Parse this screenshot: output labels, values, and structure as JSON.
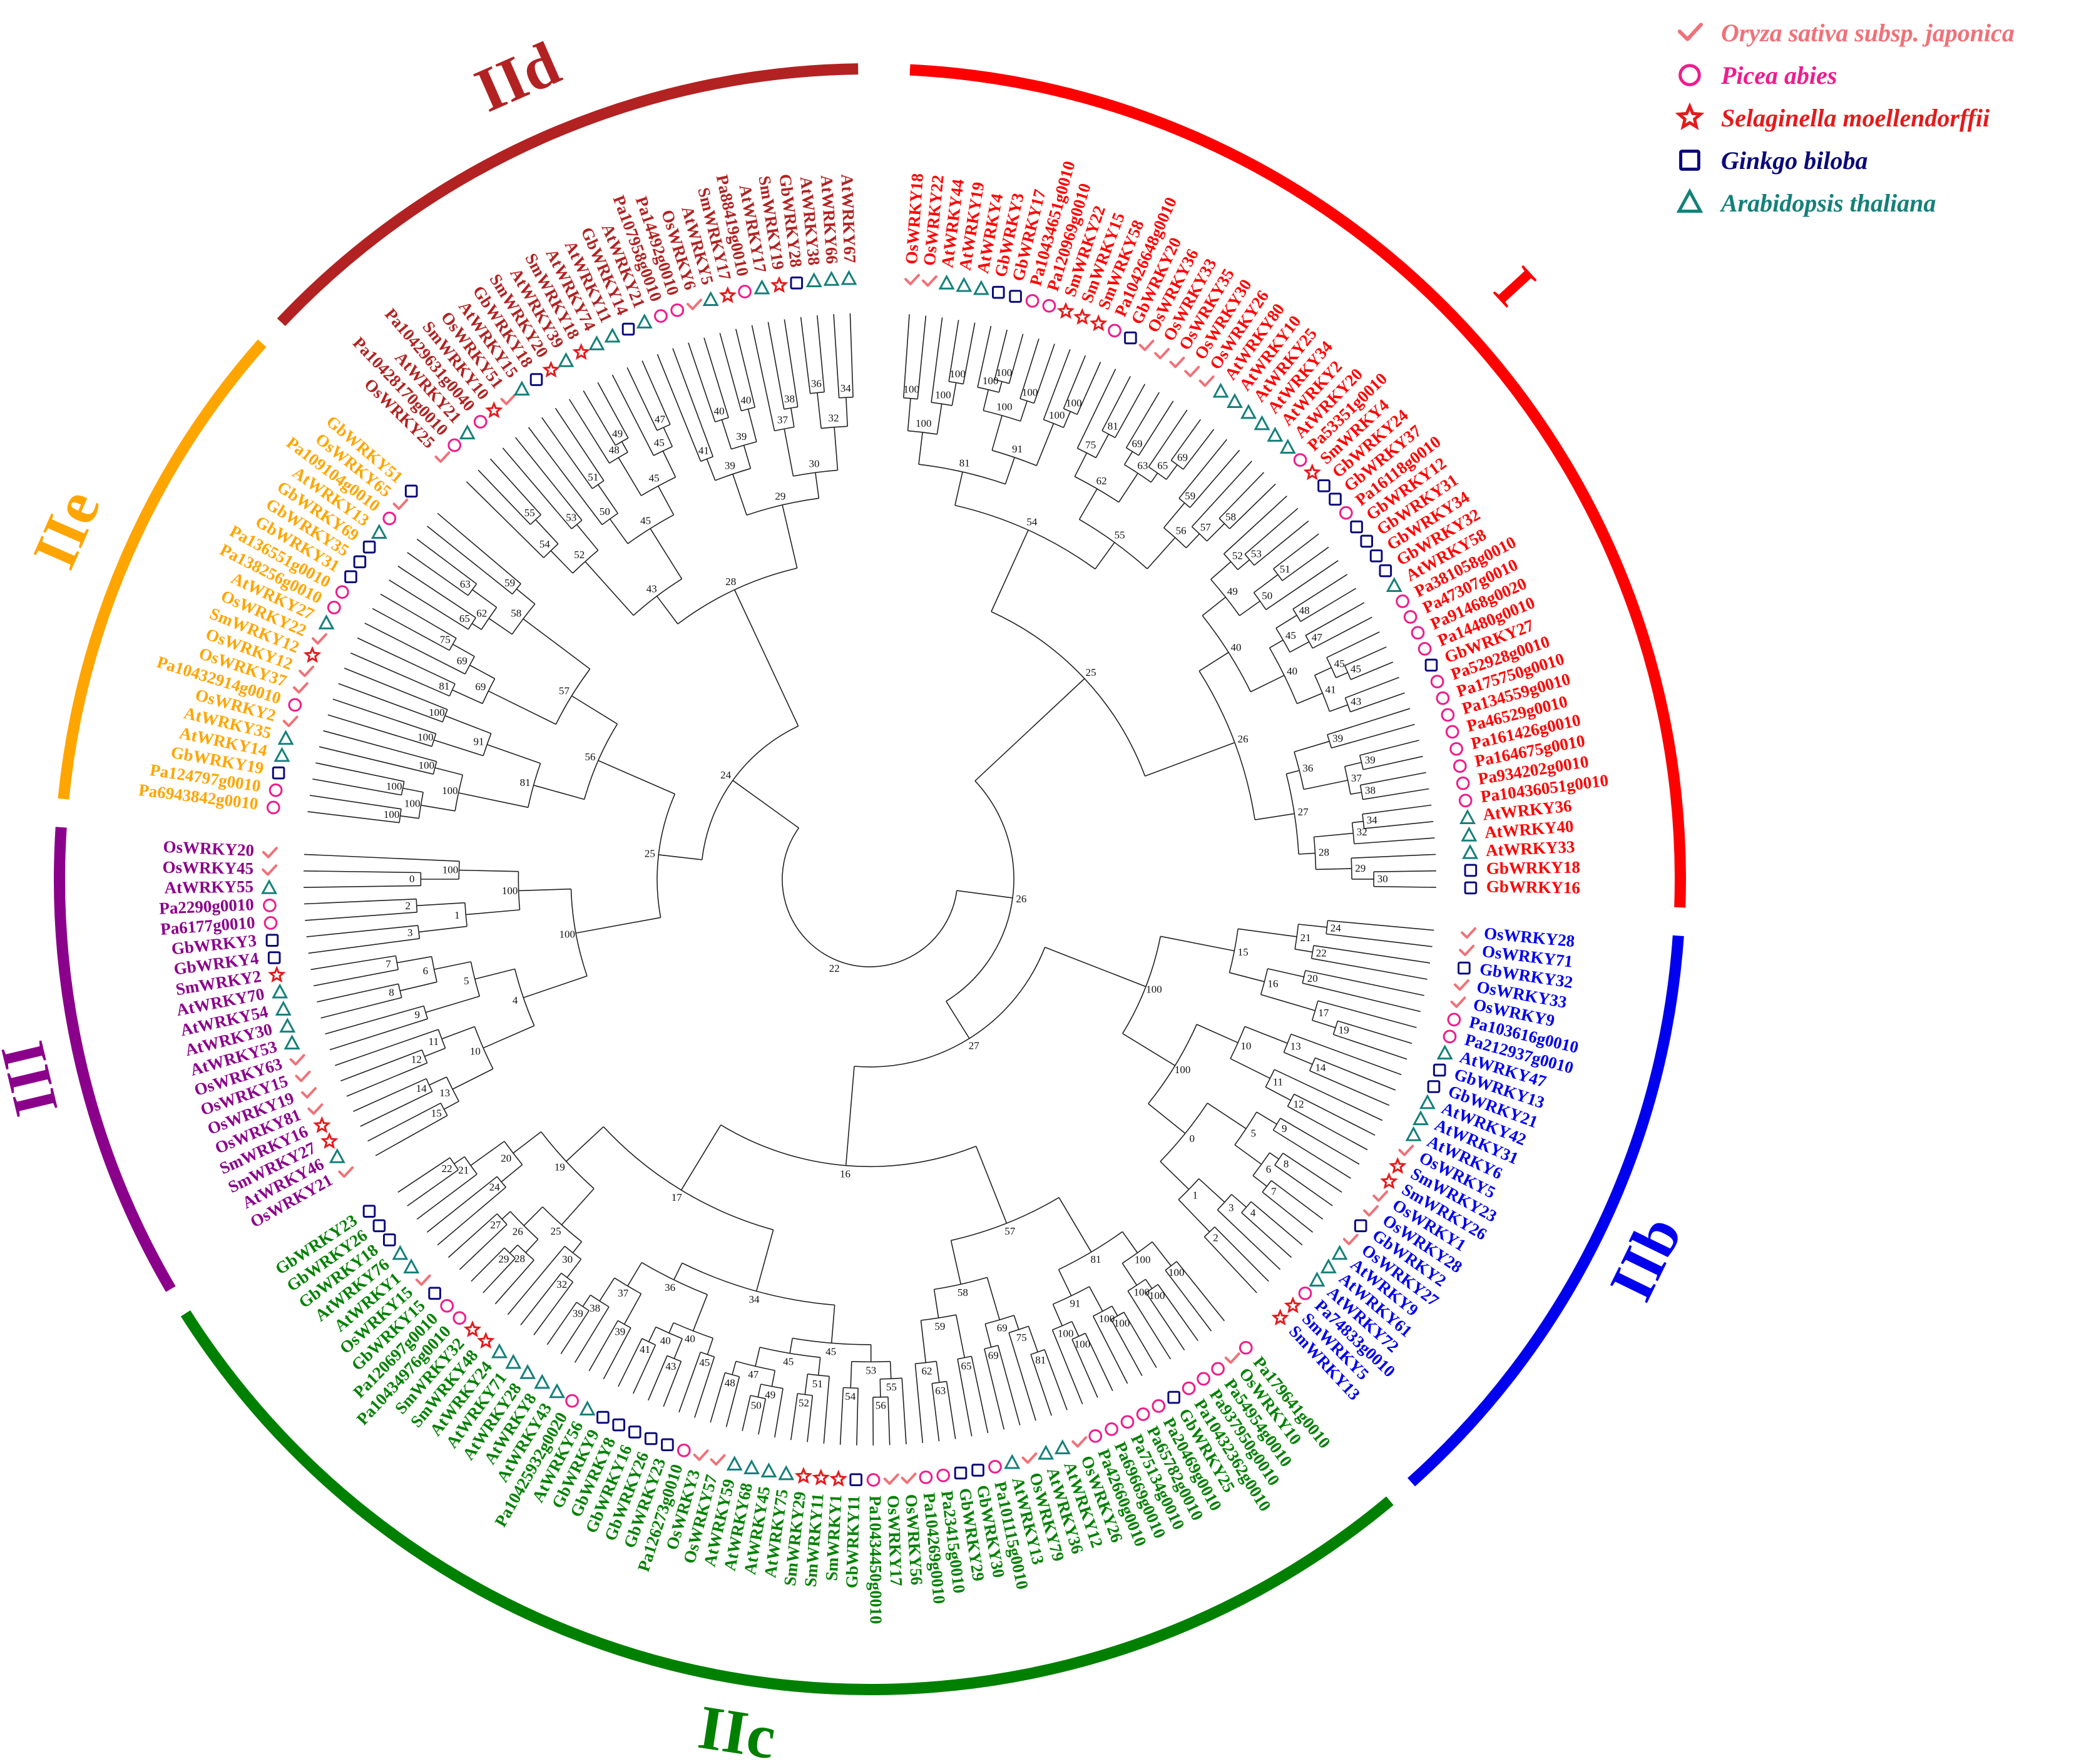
{
  "legend": [
    {
      "species": "Oryza sativa subsp. japonica",
      "prefix": "Os",
      "marker": "check",
      "color": "#f07178"
    },
    {
      "species": "Picea abies",
      "prefix": "Pa",
      "marker": "circle",
      "color": "#ee1c8c"
    },
    {
      "species": "Selaginella moellendorffii",
      "prefix": "Sm",
      "marker": "star",
      "color": "#e41a1c"
    },
    {
      "species": "Ginkgo biloba",
      "prefix": "Gb",
      "marker": "square",
      "color": "#0a0a7a"
    },
    {
      "species": "Arabidopsis thaliana",
      "prefix": "At",
      "marker": "triangle",
      "color": "#15807a"
    }
  ],
  "groups": [
    {
      "name": "I",
      "color": "#ff0000",
      "leaves": [
        "OsWRKY18",
        "OsWRKY22",
        "AtWRKY44",
        "AtWRKY19",
        "AtWRKY4",
        "GbWRKY3",
        "GbWRKY17",
        "Pa10434651g0010",
        "Pa120969g0010",
        "SmWRKY22",
        "SmWRKY15",
        "SmWRKY58",
        "Pa10426648g0010",
        "GbWRKY20",
        "OsWRKY36",
        "OsWRKY33",
        "OsWRKY35",
        "OsWRKY30",
        "OsWRKY26",
        "AtWRKY80",
        "AtWRKY10",
        "AtWRKY25",
        "AtWRKY34",
        "AtWRKY2",
        "AtWRKY20",
        "Pa53351g0010",
        "SmWRKY4",
        "GbWRKY24",
        "GbWRKY37",
        "Pa16118g0010",
        "GbWRKY12",
        "GbWRKY31",
        "GbWRKY34",
        "GbWRKY32",
        "AtWRKY58",
        "Pa381058g0010",
        "Pa47307g0010",
        "Pa91468g0020",
        "Pa14480g0010",
        "GbWRKY27",
        "Pa52928g0010",
        "Pa175750g0010",
        "Pa134559g0010",
        "Pa46529g0010",
        "Pa161426g0010",
        "Pa164675g0010",
        "Pa934202g0010",
        "Pa10436051g0010",
        "AtWRKY36",
        "AtWRKY40",
        "AtWRKY33",
        "GbWRKY18",
        "GbWRKY16"
      ]
    },
    {
      "name": "IIb",
      "color": "#0000ee",
      "leaves": [
        "OsWRKY28",
        "OsWRKY71",
        "GbWRKY32",
        "OsWRKY33",
        "OsWRKY9",
        "Pa103616g0010",
        "Pa212937g0010",
        "AtWRKY47",
        "GbWRKY13",
        "GbWRKY21",
        "AtWRKY42",
        "AtWRKY31",
        "AtWRKY6",
        "OsWRKY5",
        "SmWRKY23",
        "SmWRKY26",
        "OsWRKY1",
        "OsWRKY28",
        "GbWRKY2",
        "OsWRKY27",
        "AtWRKY9",
        "AtWRKY61",
        "AtWRKY72",
        "Pa74833g0010",
        "SmWRKY5",
        "SmWRKY13"
      ]
    },
    {
      "name": "IIc",
      "color": "#008000",
      "leaves": [
        "Pa179641g0010",
        "OsWRKY10",
        "Pa54954g0010",
        "Pa937950g0010",
        "Pa10432362g0010",
        "GbWRKY25",
        "Pa20469g0010",
        "Pa65782g0010",
        "Pa75134g0010",
        "Pa69669g0010",
        "Pa42660g0010",
        "OsWRKY26",
        "AtWRKY12",
        "AtWRKY36",
        "OsWRKY79",
        "AtWRKY13",
        "Pa101115g0010",
        "GbWRKY30",
        "GbWRKY29",
        "Pa23415g0010",
        "Pa104269g0010",
        "OsWRKY56",
        "OsWRKY17",
        "Pa10434450g0010",
        "GbWRKY11",
        "SmWRKY1",
        "SmWRKY11",
        "SmWRKY29",
        "AtWRKY75",
        "AtWRKY45",
        "AtWRKY68",
        "AtWRKY59",
        "OsWRKY57",
        "OsWRKY3",
        "Pa126273g0010",
        "GbWRKY23",
        "GbWRKY26",
        "GbWRKY16",
        "GbWRKY8",
        "GbWRKY9",
        "AtWRKY56",
        "Pa10425932g0020",
        "AtWRKY43",
        "AtWRKY8",
        "AtWRKY28",
        "AtWRKY71",
        "AtWRKY24",
        "SmWRKY48",
        "SmWRKY32",
        "Pa10434976g0010",
        "Pa120697g0010",
        "GbWRKY15",
        "OsWRKY15",
        "AtWRKY1",
        "AtWRKY76",
        "GbWRKY18",
        "GbWRKY26",
        "GbWRKY23"
      ]
    },
    {
      "name": "III",
      "color": "#8b008b",
      "leaves": [
        "OsWRKY21",
        "AtWRKY46",
        "SmWRKY27",
        "SmWRKY16",
        "OsWRKY81",
        "OsWRKY19",
        "OsWRKY15",
        "OsWRKY63",
        "AtWRKY53",
        "AtWRKY30",
        "AtWRKY54",
        "AtWRKY70",
        "SmWRKY2",
        "GbWRKY4",
        "GbWRKY3",
        "Pa6177g0010",
        "Pa2290g0010",
        "AtWRKY55",
        "OsWRKY45",
        "OsWRKY20"
      ]
    },
    {
      "name": "IIe",
      "color": "#ffa500",
      "leaves": [
        "Pa6943842g0010",
        "Pa124797g0010",
        "GbWRKY19",
        "AtWRKY14",
        "AtWRKY35",
        "OsWRKY2",
        "Pa10432914g0010",
        "OsWRKY37",
        "OsWRKY12",
        "SmWRKY12",
        "OsWRKY22",
        "AtWRKY27",
        "Pa138256g0010",
        "Pa136551g0010",
        "GbWRKY31",
        "GbWRKY35",
        "GbWRKY69",
        "AtWRKY13",
        "Pa109104g0010",
        "OsWRKY65",
        "GbWRKY51"
      ]
    },
    {
      "name": "IId",
      "color": "#b22222",
      "leaves": [
        "OsWRKY25",
        "Pa10428170g0010",
        "AtWRKY21",
        "Pa10429631g0040",
        "SmWRKY10",
        "OsWRKY51",
        "AtWRKY15",
        "GbWRKY18",
        "SmWRKY20",
        "AtWRKY39",
        "SmWRKY18",
        "AtWRKY74",
        "AtWRKY11",
        "GbWRKY14",
        "AtWRKY21",
        "Pa107958g0010",
        "Pa14492g0010",
        "OsWRKY6",
        "AtWRKY5",
        "SmWRKY17",
        "Pa88419g0010",
        "AtWRKY17",
        "SmWRKY19",
        "GbWRKY28",
        "AtWRKY38",
        "AtWRKY66",
        "AtWRKY67"
      ]
    }
  ],
  "support_values": [
    "100",
    "100",
    "100",
    "100",
    "100",
    "100",
    "100",
    "100",
    "100",
    "100",
    "91",
    "81",
    "81",
    "75",
    "69",
    "69",
    "65",
    "63",
    "62",
    "59",
    "58",
    "57",
    "56",
    "55",
    "54",
    "53",
    "52",
    "51",
    "50",
    "49",
    "48",
    "47",
    "45",
    "45",
    "45",
    "43",
    "41",
    "40",
    "40",
    "39",
    "39",
    "38",
    "37",
    "36",
    "34",
    "32",
    "30",
    "29",
    "28",
    "27",
    "26",
    "25",
    "24",
    "22",
    "21",
    "20",
    "19",
    "17",
    "16",
    "15",
    "14",
    "13",
    "12",
    "11",
    "10",
    "9",
    "8",
    "7",
    "6",
    "5",
    "4",
    "3",
    "2",
    "1",
    "0"
  ]
}
